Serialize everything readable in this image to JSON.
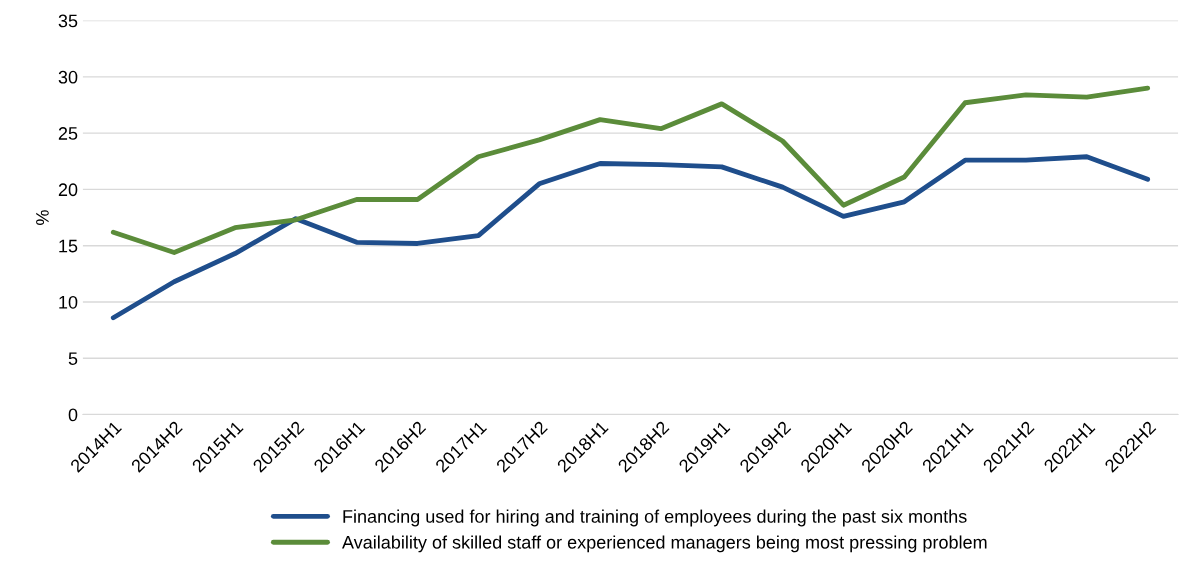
{
  "chart_data": {
    "type": "line",
    "ylabel": "%",
    "categories": [
      "2014H1",
      "2014H2",
      "2015H1",
      "2015H2",
      "2016H1",
      "2016H2",
      "2017H1",
      "2017H2",
      "2018H1",
      "2018H2",
      "2019H1",
      "2019H2",
      "2020H1",
      "2020H2",
      "2021H1",
      "2021H2",
      "2022H1",
      "2022H2"
    ],
    "series": [
      {
        "name": "Financing used for hiring and training of employees during the past six months",
        "color": "#1f4e8c",
        "values": [
          8.6,
          11.8,
          14.3,
          17.4,
          15.3,
          15.2,
          15.9,
          20.5,
          22.3,
          22.2,
          22.0,
          20.2,
          17.6,
          18.9,
          22.6,
          22.6,
          22.9,
          20.9
        ]
      },
      {
        "name": "Availability of skilled staff or experienced managers being most pressing problem",
        "color": "#5b8c3a",
        "values": [
          16.2,
          14.4,
          16.6,
          17.3,
          19.1,
          19.1,
          22.9,
          24.4,
          26.2,
          25.4,
          27.6,
          24.3,
          18.6,
          21.1,
          27.7,
          28.4,
          28.2,
          29.0
        ]
      }
    ],
    "ylim": [
      0,
      35
    ],
    "yticks": [
      0,
      5,
      10,
      15,
      20,
      25,
      30,
      35
    ],
    "grid": "y",
    "legend": "bottom",
    "marker": "none",
    "line_style": "solid"
  }
}
